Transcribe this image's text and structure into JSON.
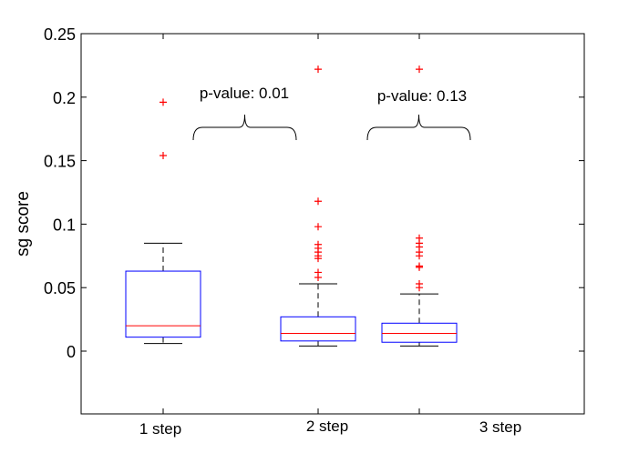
{
  "chart_data": {
    "type": "box",
    "title": "",
    "xlabel": "",
    "ylabel": "sg score",
    "ylim": [
      -0.045,
      0.25
    ],
    "yticks": [
      0,
      0.05,
      0.1,
      0.15,
      0.2,
      0.25
    ],
    "ytick_labels": [
      "0",
      "0.05",
      "0.1",
      "0.15",
      "0.2",
      "0.25"
    ],
    "categories": [
      "1 step",
      "2 step",
      "3 step"
    ],
    "boxes": [
      {
        "category": "1 step",
        "whisker_low": 0.006,
        "q1": 0.011,
        "median": 0.02,
        "q3": 0.063,
        "whisker_high": 0.085,
        "outliers": [
          0.154,
          0.196
        ]
      },
      {
        "category": "2 step",
        "whisker_low": 0.004,
        "q1": 0.008,
        "median": 0.014,
        "q3": 0.027,
        "whisker_high": 0.053,
        "outliers": [
          0.058,
          0.062,
          0.073,
          0.075,
          0.078,
          0.081,
          0.084,
          0.098,
          0.118,
          0.222
        ]
      },
      {
        "category": "3 step",
        "whisker_low": 0.004,
        "q1": 0.007,
        "median": 0.014,
        "q3": 0.022,
        "whisker_high": 0.045,
        "outliers": [
          0.05,
          0.053,
          0.066,
          0.067,
          0.075,
          0.078,
          0.082,
          0.085,
          0.089,
          0.222
        ]
      }
    ],
    "annotations": [
      {
        "text": "p-value: 0.01",
        "from": "1 step",
        "to": "2 step"
      },
      {
        "text": "p-value: 0.13",
        "from": "2 step",
        "to": "3 step"
      }
    ],
    "grid": false,
    "colors": {
      "box": "#0000ff",
      "median": "#ff0000",
      "whisker": "#000000",
      "outlier": "#ff0000"
    }
  }
}
